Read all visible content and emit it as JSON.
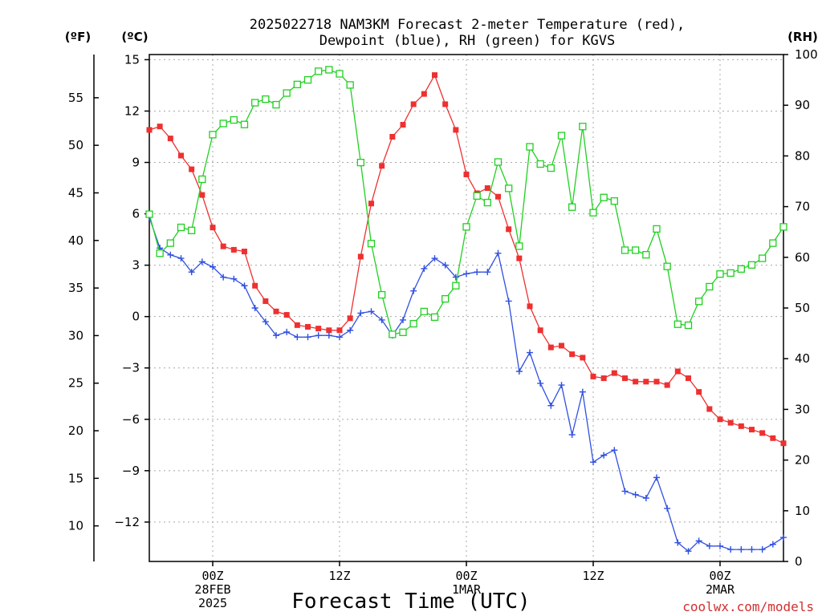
{
  "chart_data": {
    "type": "line",
    "title_line1": "2025022718 NAM3KM Forecast 2-meter Temperature (red),",
    "title_line2": "Dewpoint (blue), RH (green) for KGVS",
    "units": {
      "fahrenheit": "(ºF)",
      "celsius": "(ºC)",
      "rh": "(RH)"
    },
    "xlabel": "Forecast Time (UTC)",
    "credit": "coolwx.com/models",
    "x_range_hours": [
      -6,
      54
    ],
    "x_ticks": [
      {
        "hour": 0,
        "lines": [
          "00Z",
          "28FEB",
          "2025"
        ]
      },
      {
        "hour": 12,
        "lines": [
          "12Z"
        ]
      },
      {
        "hour": 24,
        "lines": [
          "00Z",
          "1MAR"
        ]
      },
      {
        "hour": 36,
        "lines": [
          "12Z"
        ]
      },
      {
        "hour": 48,
        "lines": [
          "00Z",
          "2MAR"
        ]
      }
    ],
    "celsius_axis": {
      "range": [
        -14.3,
        15.3
      ],
      "ticks": [
        15,
        12,
        9,
        6,
        3,
        0,
        -3,
        -6,
        -9,
        -12
      ],
      "tick_labels": [
        "15",
        "12",
        "9",
        "6",
        "3",
        "0",
        "−3",
        "−6",
        "−9",
        "−12"
      ]
    },
    "fahrenheit_axis": {
      "ticks": [
        55,
        50,
        45,
        40,
        35,
        30,
        25,
        20,
        15,
        10
      ],
      "tick_labels": [
        "55",
        "50",
        "45",
        "40",
        "35",
        "30",
        "25",
        "20",
        "15",
        "10"
      ]
    },
    "rh_axis": {
      "range": [
        0,
        100
      ],
      "ticks": [
        100,
        90,
        80,
        70,
        60,
        50,
        40,
        30,
        20,
        10,
        0
      ],
      "tick_labels": [
        "100",
        "90",
        "80",
        "70",
        "60",
        "50",
        "40",
        "30",
        "20",
        "10",
        "0"
      ]
    },
    "x_hours": [
      -6,
      -5,
      -4,
      -3,
      -2,
      -1,
      0,
      1,
      2,
      3,
      4,
      5,
      6,
      7,
      8,
      9,
      10,
      11,
      12,
      13,
      14,
      15,
      16,
      17,
      18,
      19,
      20,
      21,
      22,
      23,
      24,
      25,
      26,
      27,
      28,
      29,
      30,
      31,
      32,
      33,
      34,
      35,
      36,
      37,
      38,
      39,
      40,
      41,
      42,
      43,
      44,
      45,
      46,
      47,
      48,
      49,
      50,
      51,
      52,
      53,
      54
    ],
    "series": [
      {
        "color": "#ee3030",
        "marker": "filled-square",
        "axis": "celsius",
        "values": [
          10.9,
          11.1,
          10.4,
          9.4,
          8.6,
          7.1,
          5.2,
          4.1,
          3.9,
          3.8,
          1.8,
          0.9,
          0.3,
          0.1,
          -0.5,
          -0.6,
          -0.7,
          -0.8,
          -0.8,
          -0.1,
          3.5,
          6.6,
          8.8,
          10.5,
          11.2,
          12.4,
          13.0,
          14.1,
          12.4,
          10.9,
          8.3,
          7.2,
          7.5,
          7.0,
          5.1,
          3.4,
          0.6,
          -0.8,
          -1.8,
          -1.7,
          -2.2,
          -2.4,
          -3.5,
          -3.6,
          -3.3,
          -3.6,
          -3.8,
          -3.8,
          -3.8,
          -4.0,
          -3.2,
          -3.6,
          -4.4,
          -5.4,
          -6.0,
          -6.2,
          -6.4,
          -6.6,
          -6.8,
          -7.1,
          -7.4
        ]
      },
      {
        "color": "#3050e0",
        "marker": "plus",
        "axis": "celsius",
        "values": [
          5.8,
          4.0,
          3.6,
          3.4,
          2.6,
          3.2,
          2.9,
          2.3,
          2.2,
          1.8,
          0.5,
          -0.3,
          -1.1,
          -0.9,
          -1.2,
          -1.2,
          -1.1,
          -1.1,
          -1.2,
          -0.8,
          0.2,
          0.3,
          -0.2,
          -1.1,
          -0.2,
          1.5,
          2.8,
          3.4,
          3.0,
          2.3,
          2.5,
          2.6,
          2.6,
          3.7,
          0.9,
          -3.2,
          -2.1,
          -3.9,
          -5.2,
          -4.0,
          -6.9,
          -4.4,
          -8.5,
          -8.1,
          -7.8,
          -10.2,
          -10.4,
          -10.6,
          -9.4,
          -11.2,
          -13.2,
          -13.7,
          -13.1,
          -13.4,
          -13.4,
          -13.6,
          -13.6,
          -13.6,
          -13.6,
          -13.3,
          -12.9
        ]
      },
      {
        "color": "#20d020",
        "marker": "open-square",
        "axis": "rh",
        "values": [
          68.5,
          60.8,
          62.8,
          65.9,
          65.3,
          75.4,
          84.2,
          86.4,
          87.1,
          86.2,
          90.5,
          91.2,
          90.1,
          92.4,
          94.1,
          95.0,
          96.7,
          97.0,
          96.2,
          94.0,
          78.7,
          62.7,
          52.6,
          44.8,
          45.2,
          46.9,
          49.3,
          48.2,
          51.8,
          54.4,
          66.0,
          72.1,
          70.8,
          78.8,
          73.6,
          62.2,
          81.8,
          78.4,
          77.6,
          84.0,
          69.9,
          85.8,
          68.8,
          71.8,
          71.1,
          61.4,
          61.4,
          60.5,
          65.6,
          58.2,
          46.8,
          46.6,
          51.3,
          54.2,
          56.7,
          56.9,
          57.7,
          58.5,
          59.8,
          62.8,
          66.0
        ]
      }
    ]
  }
}
